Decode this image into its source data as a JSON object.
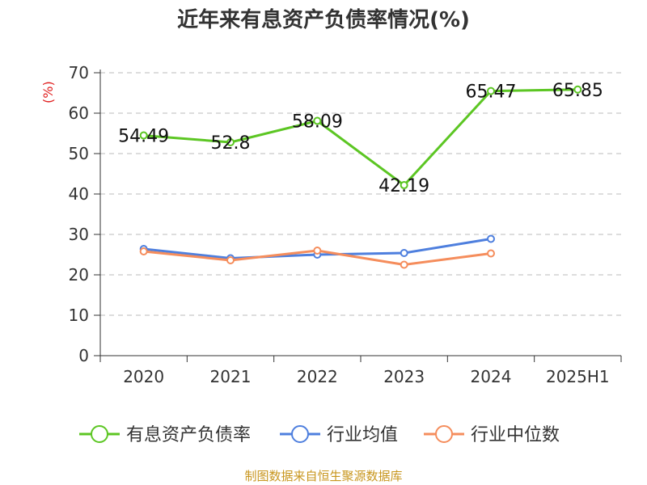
{
  "title": "近年来有息资产负债率情况(%)",
  "unit_label": "(%)",
  "source": "制图数据来自恒生聚源数据库",
  "colors": {
    "debt_ratio": "#5cc623",
    "industry_avg": "#4e7fde",
    "industry_median": "#f58d5c"
  },
  "chart_data": {
    "type": "line",
    "categories": [
      "2020",
      "2021",
      "2022",
      "2023",
      "2024",
      "2025H1"
    ],
    "ylim": [
      0,
      70
    ],
    "yticks": [
      0,
      10,
      20,
      30,
      40,
      50,
      60,
      70
    ],
    "grid": true,
    "legend_position": "bottom",
    "series": [
      {
        "name": "有息资产负债率",
        "values": [
          54.49,
          52.8,
          58.09,
          42.19,
          65.47,
          65.85
        ],
        "labels": [
          "54.49",
          "52.8",
          "58.09",
          "42.19",
          "65.47",
          "65.85"
        ]
      },
      {
        "name": "行业均值",
        "values": [
          26.4,
          24.1,
          25.0,
          25.4,
          28.9,
          null
        ]
      },
      {
        "name": "行业中位数",
        "values": [
          25.8,
          23.6,
          26.0,
          22.5,
          25.3,
          null
        ]
      }
    ]
  }
}
